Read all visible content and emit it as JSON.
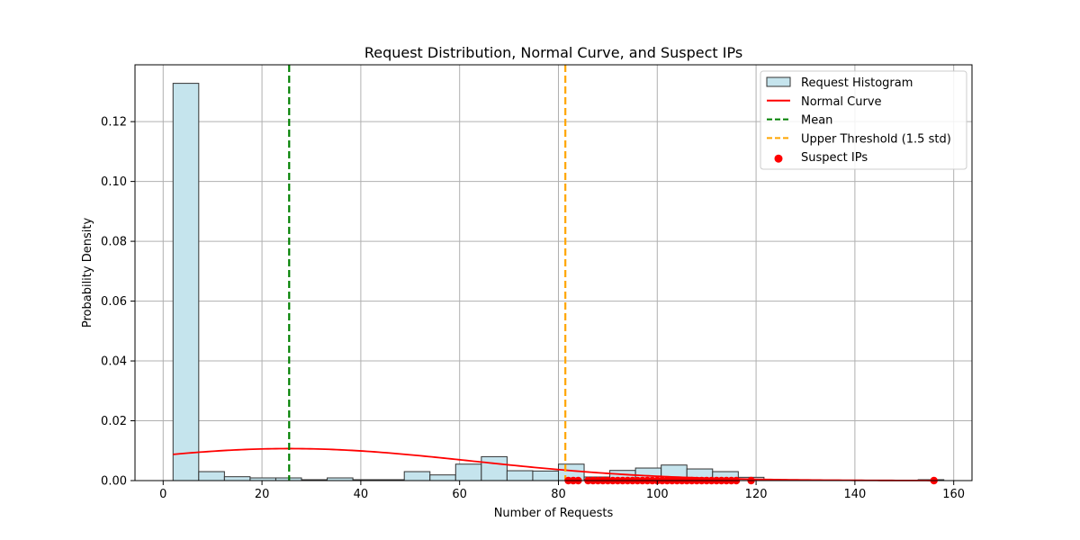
{
  "chart_data": {
    "type": "bar",
    "title": "Request Distribution, Normal Curve, and Suspect IPs",
    "xlabel": "Number of Requests",
    "ylabel": "Probability Density",
    "xlim": [
      -5.7,
      163.7
    ],
    "ylim": [
      0,
      0.139
    ],
    "xticks": [
      0,
      20,
      40,
      60,
      80,
      100,
      120,
      140,
      160
    ],
    "yticks": [
      0.0,
      0.02,
      0.04,
      0.06,
      0.08,
      0.1,
      0.12
    ],
    "grid": true,
    "legend_position": "top-right",
    "histogram": {
      "name": "Request Histogram",
      "color": "#c5e4ed",
      "edge_color": "#333333",
      "bin_edges": [
        2,
        7.2,
        12.4,
        17.6,
        22.8,
        28.0,
        33.2,
        38.4,
        43.6,
        48.8,
        54.0,
        59.2,
        64.4,
        69.6,
        74.8,
        80.0,
        85.2,
        90.4,
        95.6,
        100.8,
        106.0,
        111.2,
        116.4,
        121.6,
        126.8,
        132.0,
        137.2,
        142.4,
        147.6,
        152.8,
        158.0
      ],
      "values": [
        0.1328,
        0.003,
        0.0013,
        0.0009,
        0.0009,
        0.0003,
        0.0009,
        0.0003,
        0.0003,
        0.003,
        0.0019,
        0.0055,
        0.008,
        0.0033,
        0.0032,
        0.0055,
        0.0012,
        0.0034,
        0.0042,
        0.0052,
        0.0039,
        0.003,
        0.0011,
        0.0003,
        0.0001,
        0.0001,
        0.0001,
        0.0001,
        0.0001,
        0.0003
      ]
    },
    "normal_curve": {
      "name": "Normal Curve",
      "color": "#ff0000",
      "mean": 25.5,
      "std": 37.3,
      "x_range": [
        2,
        156
      ]
    },
    "mean_line": {
      "name": "Mean",
      "x": 25.5,
      "color": "#008000"
    },
    "upper_threshold_line": {
      "name": "Upper Threshold (1.5 std)",
      "x": 81.4,
      "color": "#ffa500"
    },
    "suspect_ips": {
      "name": "Suspect IPs",
      "color": "#ff0000",
      "x": [
        82,
        83,
        84,
        86,
        87,
        88,
        89,
        90,
        91,
        92,
        93,
        94,
        95,
        96,
        97,
        98,
        99,
        100,
        101,
        102,
        103,
        104,
        105,
        106,
        107,
        108,
        109,
        110,
        111,
        112,
        113,
        114,
        115,
        116,
        119,
        156
      ]
    }
  }
}
